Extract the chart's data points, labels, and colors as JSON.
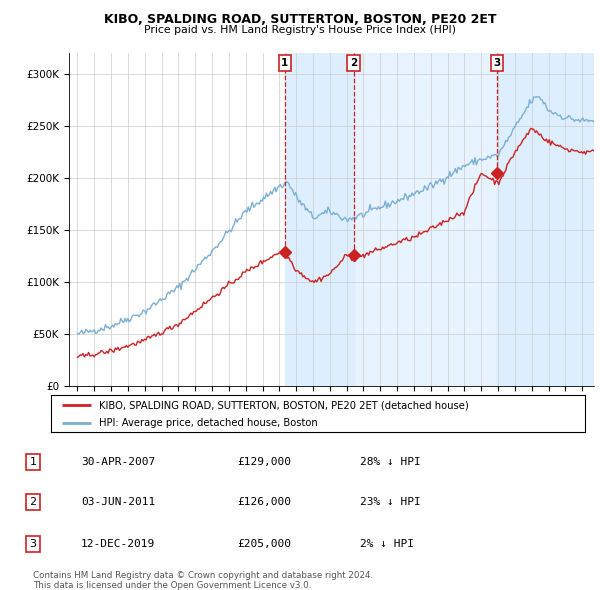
{
  "title": "KIBO, SPALDING ROAD, SUTTERTON, BOSTON, PE20 2ET",
  "subtitle": "Price paid vs. HM Land Registry's House Price Index (HPI)",
  "legend_line1": "KIBO, SPALDING ROAD, SUTTERTON, BOSTON, PE20 2ET (detached house)",
  "legend_line2": "HPI: Average price, detached house, Boston",
  "sale_points": [
    {
      "label": "1",
      "date": "30-APR-2007",
      "price": 129000,
      "pct": "28%",
      "x_year": 2007.33
    },
    {
      "label": "2",
      "date": "03-JUN-2011",
      "price": 126000,
      "pct": "23%",
      "x_year": 2011.42
    },
    {
      "label": "3",
      "date": "12-DEC-2019",
      "price": 205000,
      "pct": "2%",
      "x_year": 2019.95
    }
  ],
  "table_rows": [
    [
      "1",
      "30-APR-2007",
      "£129,000",
      "28% ↓ HPI"
    ],
    [
      "2",
      "03-JUN-2011",
      "£126,000",
      "23% ↓ HPI"
    ],
    [
      "3",
      "12-DEC-2019",
      "£205,000",
      "2% ↓ HPI"
    ]
  ],
  "footer1": "Contains HM Land Registry data © Crown copyright and database right 2024.",
  "footer2": "This data is licensed under the Open Government Licence v3.0.",
  "hpi_color": "#7bafd4",
  "price_color": "#cc2222",
  "shade_color": "#ddeeff",
  "ylim": [
    0,
    320000
  ],
  "yticks": [
    0,
    50000,
    100000,
    150000,
    200000,
    250000,
    300000
  ],
  "xlim_start": 1994.5,
  "xlim_end": 2025.7,
  "hpi_base_years": [
    1995,
    1997,
    1999,
    2001,
    2003,
    2005,
    2007.0,
    2007.5,
    2008,
    2009,
    2010,
    2011,
    2012,
    2013,
    2014,
    2015,
    2016,
    2017,
    2018,
    2019,
    2020,
    2021,
    2022,
    2022.5,
    2023,
    2024,
    2025
  ],
  "hpi_base_prices": [
    50000,
    58000,
    72000,
    95000,
    130000,
    168000,
    192000,
    196000,
    182000,
    162000,
    168000,
    160000,
    165000,
    172000,
    178000,
    185000,
    192000,
    202000,
    212000,
    218000,
    222000,
    248000,
    275000,
    278000,
    265000,
    258000,
    255000
  ],
  "red_base_years": [
    1995,
    1997,
    1999,
    2001,
    2003,
    2005,
    2007.0,
    2007.5,
    2008,
    2009,
    2010,
    2011.0,
    2011.5,
    2012,
    2013,
    2014,
    2015,
    2016,
    2017,
    2018,
    2019.0,
    2020,
    2021,
    2022,
    2023,
    2024,
    2025
  ],
  "red_base_prices": [
    28000,
    34000,
    44000,
    60000,
    85000,
    110000,
    129000,
    125000,
    112000,
    100000,
    108000,
    126000,
    122000,
    126000,
    132000,
    138000,
    143000,
    151000,
    160000,
    168000,
    205000,
    195000,
    225000,
    248000,
    235000,
    228000,
    225000
  ]
}
